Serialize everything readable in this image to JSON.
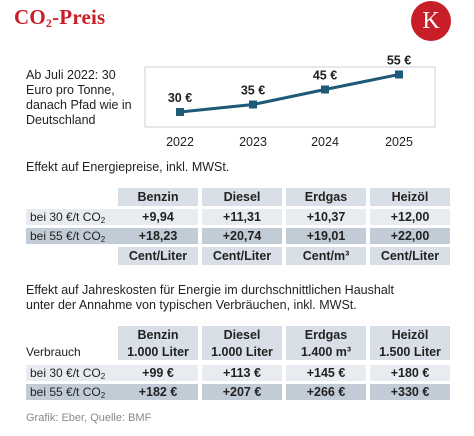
{
  "header": {
    "title_main": "CO",
    "title_sub": "2",
    "title_rest": "-Preis",
    "logo_letter": "K",
    "accent_color": "#c81e28"
  },
  "chart_note": "Ab Juli 2022: 30 Euro pro Tonne, danach Pfad wie in Deutschland",
  "chart_data": {
    "type": "line",
    "x": [
      "2022",
      "2023",
      "2024",
      "2025"
    ],
    "series": [
      {
        "values": [
          30,
          35,
          45,
          55
        ],
        "labels": [
          "30 €",
          "35 €",
          "45 €",
          "55 €"
        ],
        "color": "#1e5a78"
      }
    ],
    "ylim": [
      20,
      60
    ]
  },
  "section1": {
    "caption": "Effekt auf Energiepreise, inkl. MWSt.",
    "columns": [
      "Benzin",
      "Diesel",
      "Erdgas",
      "Heizöl"
    ],
    "rows": [
      {
        "label_pre": "bei 30 €/t CO",
        "label_sub": "2",
        "values": [
          "+9,94",
          "+11,31",
          "+10,37",
          "+12,00"
        ]
      },
      {
        "label_pre": "bei 55 €/t CO",
        "label_sub": "2",
        "values": [
          "+18,23",
          "+20,74",
          "+19,01",
          "+22,00"
        ]
      }
    ],
    "units": [
      "Cent/Liter",
      "Cent/Liter",
      "Cent/m³",
      "Cent/Liter"
    ]
  },
  "section2": {
    "caption_line1": "Effekt auf Jahreskosten für Energie im durchschnittlichen Haushalt",
    "caption_line2": "unter der Annahme von typischen Verbräuchen, inkl. MWSt.",
    "columns": [
      "Benzin",
      "Diesel",
      "Erdgas",
      "Heizöl"
    ],
    "consumption_label": "Verbrauch",
    "consumption": [
      "1.000 Liter",
      "1.000 Liter",
      "1.400 m³",
      "1.500 Liter"
    ],
    "rows": [
      {
        "label_pre": "bei 30 €/t CO",
        "label_sub": "2",
        "values": [
          "+99 €",
          "+113 €",
          "+145 €",
          "+180 €"
        ]
      },
      {
        "label_pre": "bei 55 €/t CO",
        "label_sub": "2",
        "values": [
          "+182 €",
          "+207 €",
          "+266 €",
          "+330 €"
        ]
      }
    ]
  },
  "source": "Grafik: Eber, Quelle: BMF"
}
